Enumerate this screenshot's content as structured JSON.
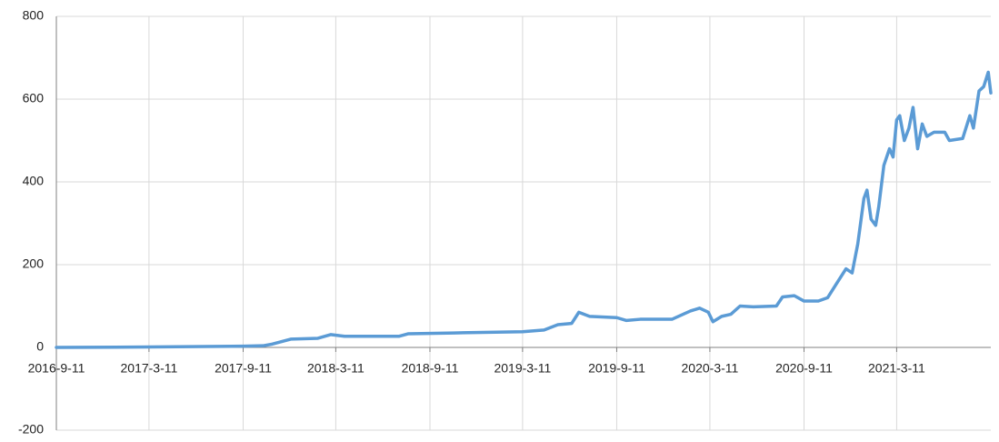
{
  "chart_data": {
    "type": "line",
    "x": [
      "2016-9-11",
      "2017-3-11",
      "2017-9-11",
      "2017-10-20",
      "2017-11-7",
      "2017-12-13",
      "2018-2-4",
      "2018-3-1",
      "2018-3-28",
      "2018-7-13",
      "2018-7-31",
      "2018-10-28",
      "2019-3-11",
      "2019-4-22",
      "2019-5-19",
      "2019-6-15",
      "2019-6-29",
      "2019-7-20",
      "2019-9-11",
      "2019-9-30",
      "2019-10-27",
      "2019-12-28",
      "2020-2-2",
      "2020-2-20",
      "2020-3-8",
      "2020-3-17",
      "2020-4-3",
      "2020-4-21",
      "2020-5-9",
      "2020-6-4",
      "2020-7-19",
      "2020-7-31",
      "2020-8-23",
      "2020-9-11",
      "2020-10-9",
      "2020-10-27",
      "2020-11-14",
      "2020-12-2",
      "2020-12-14",
      "2020-12-25",
      "2021-1-6",
      "2021-1-12",
      "2021-1-20",
      "2021-1-29",
      "2021-2-4",
      "2021-2-14",
      "2021-2-25",
      "2021-3-4",
      "2021-3-11",
      "2021-3-17",
      "2021-3-26",
      "2021-4-4",
      "2021-4-12",
      "2021-4-21",
      "2021-4-30",
      "2021-5-9",
      "2021-5-23",
      "2021-6-13",
      "2021-6-22",
      "2021-7-18",
      "2021-8-1",
      "2021-8-8",
      "2021-8-19",
      "2021-8-28",
      "2021-9-6",
      "2021-9-11"
    ],
    "values": [
      0,
      1,
      3,
      4,
      8,
      20,
      22,
      31,
      27,
      27,
      33,
      35,
      38,
      42,
      55,
      58,
      85,
      75,
      72,
      65,
      68,
      68,
      88,
      95,
      85,
      62,
      75,
      80,
      100,
      98,
      100,
      122,
      125,
      112,
      112,
      120,
      155,
      190,
      180,
      250,
      360,
      380,
      310,
      295,
      340,
      440,
      480,
      460,
      550,
      560,
      500,
      530,
      580,
      480,
      540,
      510,
      520,
      520,
      500,
      505,
      560,
      530,
      620,
      630,
      665,
      615
    ],
    "color": "#5b9bd5",
    "xlim": [
      "2016-9-11",
      "2021-9-11"
    ],
    "xticks": [
      "2016-9-11",
      "2017-3-11",
      "2017-9-11",
      "2018-3-11",
      "2018-9-11",
      "2019-3-11",
      "2019-9-11",
      "2020-3-11",
      "2020-9-11",
      "2021-3-11"
    ],
    "ylim": [
      -200,
      800
    ],
    "yticks": [
      -200,
      0,
      200,
      400,
      600,
      800
    ],
    "grid": true
  }
}
